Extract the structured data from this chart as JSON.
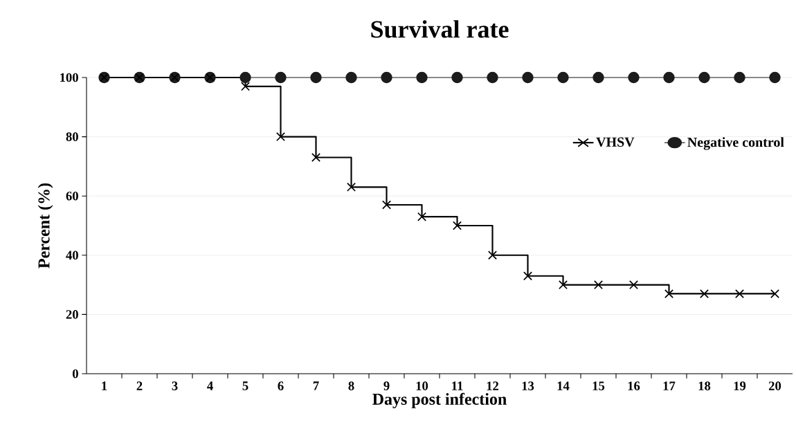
{
  "chart_data": {
    "type": "line",
    "title": "Survival rate",
    "xlabel": "Days post infection",
    "ylabel": "Percent (%)",
    "categories": [
      "1",
      "2",
      "3",
      "4",
      "5",
      "6",
      "7",
      "8",
      "9",
      "10",
      "11",
      "12",
      "13",
      "14",
      "15",
      "16",
      "17",
      "18",
      "19",
      "20"
    ],
    "series": [
      {
        "name": "VHSV",
        "type": "step",
        "marker": "cross",
        "color": "#000000",
        "values": [
          100,
          100,
          100,
          100,
          97,
          80,
          73,
          63,
          57,
          53,
          50,
          40,
          33,
          30,
          30,
          30,
          27,
          27,
          27,
          27
        ]
      },
      {
        "name": "Negative control",
        "marker": "circle",
        "color": "#1c1c1c",
        "values": [
          100,
          100,
          100,
          100,
          100,
          100,
          100,
          100,
          100,
          100,
          100,
          100,
          100,
          100,
          100,
          100,
          100,
          100,
          100,
          100
        ]
      }
    ],
    "ylim": [
      0,
      100
    ],
    "yticks": [
      0,
      20,
      40,
      60,
      80,
      100
    ],
    "grid": "y",
    "legend": "top right"
  }
}
